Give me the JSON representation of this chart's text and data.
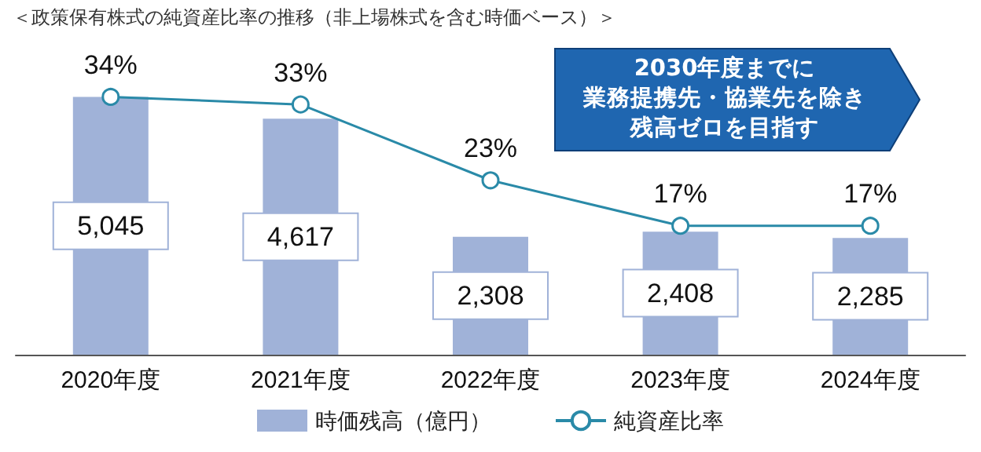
{
  "chart_data": {
    "type": "bar",
    "title": "＜政策保有株式の純資産比率の推移（非上場株式を含む時価ベース）＞",
    "categories": [
      "2020年度",
      "2021年度",
      "2022年度",
      "2023年度",
      "2024年度"
    ],
    "series": [
      {
        "name": "時価残高（億円）",
        "color": "#a0b2d8",
        "values": [
          5045,
          4617,
          2308,
          2408,
          2285
        ],
        "value_labels": [
          "5,045",
          "4,617",
          "2,308",
          "2,408",
          "2,285"
        ]
      },
      {
        "name": "純資産比率",
        "type": "line",
        "axis": "y2",
        "color": "#2a8aa8",
        "marker": "circle",
        "values": [
          34,
          33,
          23,
          17,
          17
        ],
        "value_labels": [
          "34%",
          "33%",
          "23%",
          "17%",
          "17%"
        ]
      }
    ],
    "annotations": [
      "2030年度までに",
      "業務提携先・協業先を除き",
      "残高ゼロを目指す"
    ],
    "legend": "bottom"
  }
}
